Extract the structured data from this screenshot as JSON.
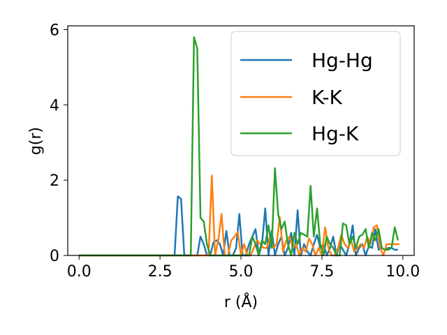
{
  "chart_data": {
    "type": "line",
    "title": "",
    "xlabel": "r (Å)",
    "ylabel": "g(r)",
    "xlim": [
      -0.35,
      10.35
    ],
    "ylim": [
      0,
      6.1
    ],
    "xticks": [
      0.0,
      2.5,
      5.0,
      7.5,
      10.0
    ],
    "xtick_labels": [
      "0.0",
      "2.5",
      "5.0",
      "7.5",
      "10.0"
    ],
    "yticks": [
      0,
      2,
      4,
      6
    ],
    "ytick_labels": [
      "0",
      "2",
      "4",
      "6"
    ],
    "grid": false,
    "legend_position": "top-right",
    "series": [
      {
        "name": "Hg-Hg",
        "color": "#1f77b4",
        "x": [
          0,
          1.0,
          2.0,
          2.95,
          3.05,
          3.15,
          3.25,
          3.35,
          3.45,
          3.55,
          3.65,
          3.75,
          3.85,
          3.95,
          4.05,
          4.15,
          4.25,
          4.35,
          4.45,
          4.55,
          4.65,
          4.75,
          4.85,
          4.95,
          5.05,
          5.15,
          5.25,
          5.35,
          5.45,
          5.55,
          5.65,
          5.75,
          5.85,
          5.95,
          6.05,
          6.15,
          6.25,
          6.35,
          6.45,
          6.55,
          6.65,
          6.75,
          6.85,
          6.95,
          7.05,
          7.15,
          7.25,
          7.35,
          7.45,
          7.55,
          7.65,
          7.75,
          7.85,
          7.95,
          8.05,
          8.15,
          8.25,
          8.35,
          8.45,
          8.55,
          8.65,
          8.75,
          8.85,
          8.95,
          9.05,
          9.15,
          9.25,
          9.35,
          9.45,
          9.55,
          9.65,
          9.75,
          9.85
        ],
        "y": [
          0,
          0,
          0,
          0,
          1.57,
          1.5,
          0,
          0,
          0,
          0,
          0,
          0.5,
          0.3,
          0,
          0,
          0.35,
          0.4,
          0.3,
          0,
          0.65,
          0,
          0,
          0.2,
          1.1,
          0,
          0,
          0.3,
          0.5,
          0.7,
          0,
          0.3,
          1.25,
          0,
          0.65,
          0,
          0.3,
          0.5,
          0,
          0.2,
          0.6,
          0,
          1.2,
          0,
          0.3,
          0.1,
          0,
          0.3,
          0.55,
          0.2,
          0.3,
          0,
          0.2,
          0.5,
          0,
          0.3,
          0.15,
          0,
          0.3,
          0.8,
          0,
          0.2,
          0.3,
          0,
          0.25,
          0.2,
          0.7,
          0.15,
          0.2,
          0.15,
          0.2,
          0.2,
          0.15,
          0.15
        ]
      },
      {
        "name": "K-K",
        "color": "#ff7f0e",
        "x": [
          0,
          1.0,
          2.0,
          3.0,
          3.8,
          3.9,
          4.0,
          4.1,
          4.2,
          4.3,
          4.4,
          4.5,
          4.6,
          4.7,
          4.8,
          4.9,
          5.0,
          5.1,
          5.2,
          5.3,
          5.4,
          5.5,
          5.6,
          5.7,
          5.8,
          5.9,
          6.0,
          6.1,
          6.2,
          6.3,
          6.4,
          6.5,
          6.6,
          6.7,
          6.8,
          6.9,
          7.0,
          7.1,
          7.2,
          7.3,
          7.4,
          7.5,
          7.6,
          7.7,
          7.8,
          7.9,
          8.0,
          8.1,
          8.2,
          8.3,
          8.4,
          8.5,
          8.6,
          8.7,
          8.8,
          8.9,
          9.0,
          9.1,
          9.2,
          9.3,
          9.4,
          9.5,
          9.6,
          9.7,
          9.8,
          9.9
        ],
        "y": [
          0,
          0,
          0,
          0,
          0,
          0,
          0,
          2.12,
          0,
          0.4,
          1.1,
          0,
          0,
          0.4,
          0.5,
          0.62,
          0,
          0.3,
          0,
          0,
          0.2,
          0.4,
          0.3,
          0.2,
          0.2,
          0.5,
          0.2,
          0.3,
          1.02,
          0.1,
          0.4,
          0.5,
          0.2,
          0.3,
          0,
          0.2,
          0.1,
          0.45,
          0.3,
          0,
          0.2,
          0,
          0.75,
          0.2,
          0,
          0,
          0.2,
          0.55,
          0.3,
          0.2,
          0.4,
          0.1,
          0.2,
          0.3,
          0.2,
          0.5,
          0.3,
          0.75,
          0.8,
          0.2,
          0,
          0.3,
          0.3,
          0.3,
          0.3,
          0.3
        ]
      },
      {
        "name": "Hg-K",
        "color": "#2ca02c",
        "x": [
          0,
          1.0,
          2.0,
          3.0,
          3.45,
          3.55,
          3.65,
          3.75,
          3.85,
          3.95,
          4.05,
          4.15,
          4.25,
          4.35,
          4.45,
          4.55,
          4.65,
          4.75,
          4.85,
          4.95,
          5.05,
          5.15,
          5.25,
          5.35,
          5.45,
          5.55,
          5.65,
          5.75,
          5.85,
          5.95,
          6.05,
          6.15,
          6.25,
          6.35,
          6.45,
          6.55,
          6.65,
          6.75,
          6.85,
          6.95,
          7.05,
          7.15,
          7.25,
          7.35,
          7.45,
          7.55,
          7.65,
          7.75,
          7.85,
          7.95,
          8.05,
          8.15,
          8.25,
          8.35,
          8.45,
          8.55,
          8.65,
          8.75,
          8.85,
          8.95,
          9.05,
          9.15,
          9.25,
          9.35,
          9.45,
          9.55,
          9.65,
          9.75,
          9.85
        ],
        "y": [
          0,
          0,
          0,
          0,
          0,
          5.8,
          5.5,
          1.0,
          0.9,
          0.3,
          0,
          0,
          0,
          0,
          0,
          0,
          0,
          0,
          0,
          0,
          0,
          0,
          0,
          0.5,
          0.3,
          0,
          0.4,
          0.3,
          0.8,
          0.2,
          2.32,
          1.1,
          0.7,
          0.9,
          0.3,
          0,
          0.6,
          0.3,
          0.6,
          0.55,
          0.5,
          1.85,
          0.5,
          1.25,
          0.3,
          0,
          0.5,
          0.3,
          0.2,
          0,
          0,
          0.85,
          0.8,
          0.3,
          0.5,
          0.2,
          0.5,
          0.55,
          0.7,
          0.2,
          0.6,
          0.4,
          0.7,
          0.2,
          0.15,
          0.15,
          0.2,
          0.75,
          0.4
        ]
      }
    ]
  }
}
